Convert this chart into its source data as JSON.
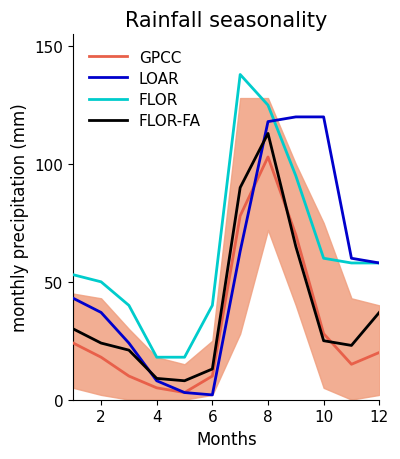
{
  "title": "Rainfall seasonality",
  "xlabel": "Months",
  "ylabel": "monthly precipitation (mm)",
  "xlim": [
    1,
    12
  ],
  "ylim": [
    0,
    155
  ],
  "xticks": [
    2,
    4,
    6,
    8,
    10,
    12
  ],
  "yticks": [
    0,
    50,
    100,
    150
  ],
  "months": [
    1,
    2,
    3,
    4,
    5,
    6,
    7,
    8,
    9,
    10,
    11,
    12
  ],
  "gpcc_mean": [
    24,
    18,
    10,
    5,
    3,
    10,
    78,
    103,
    70,
    28,
    15,
    20
  ],
  "gpcc_upper": [
    45,
    43,
    30,
    18,
    15,
    25,
    128,
    128,
    100,
    75,
    43,
    40
  ],
  "gpcc_lower": [
    5,
    2,
    0,
    0,
    0,
    2,
    28,
    72,
    40,
    5,
    0,
    2
  ],
  "loar": [
    43,
    37,
    24,
    8,
    3,
    2,
    63,
    118,
    120,
    120,
    60,
    58
  ],
  "flor": [
    53,
    50,
    40,
    18,
    18,
    40,
    138,
    125,
    95,
    60,
    58,
    58
  ],
  "flor_fa": [
    30,
    24,
    21,
    9,
    8,
    13,
    90,
    113,
    65,
    25,
    23,
    37
  ],
  "gpcc_color": "#e8604a",
  "gpcc_fill_color": "#f0a080",
  "loar_color": "#0000cc",
  "flor_color": "#00cccc",
  "flor_fa_color": "#000000",
  "background_color": "#ffffff",
  "title_fontsize": 15,
  "label_fontsize": 12,
  "tick_fontsize": 11,
  "legend_fontsize": 11,
  "line_width": 2.0
}
